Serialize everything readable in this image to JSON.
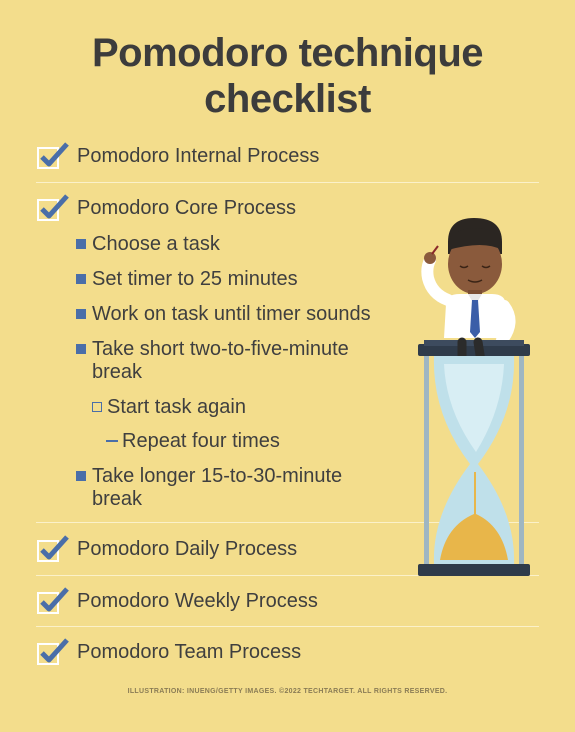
{
  "title": {
    "line1": "Pomodoro technique",
    "line2": "checklist"
  },
  "items": {
    "internal": "Pomodoro Internal Process",
    "core": "Pomodoro Core Process",
    "daily": "Pomodoro Daily Process",
    "weekly": "Pomodoro Weekly Process",
    "team": "Pomodoro Team Process"
  },
  "core_steps": {
    "s1": "Choose a task",
    "s2": "Set timer to 25 minutes",
    "s3": "Work on task until timer sounds",
    "s4_line1": "Take short two-to-five-minute",
    "s4_line2": "break",
    "s4_sub": "Start task again",
    "s4_subsub": "Repeat four times",
    "s5_line1": "Take longer 15-to-30-minute",
    "s5_line2": "break"
  },
  "credit": "ILLUSTRATION: INUENG/GETTY IMAGES. ©2022 TECHTARGET. ALL RIGHTS RESERVED.",
  "colors": {
    "background": "#f3dd8c",
    "check_blue": "#4a6ea8",
    "text": "#3f3f3f",
    "hourglass_frame": "#2f3b4a",
    "sand": "#e8b64a",
    "glass": "#bfe0ea"
  }
}
